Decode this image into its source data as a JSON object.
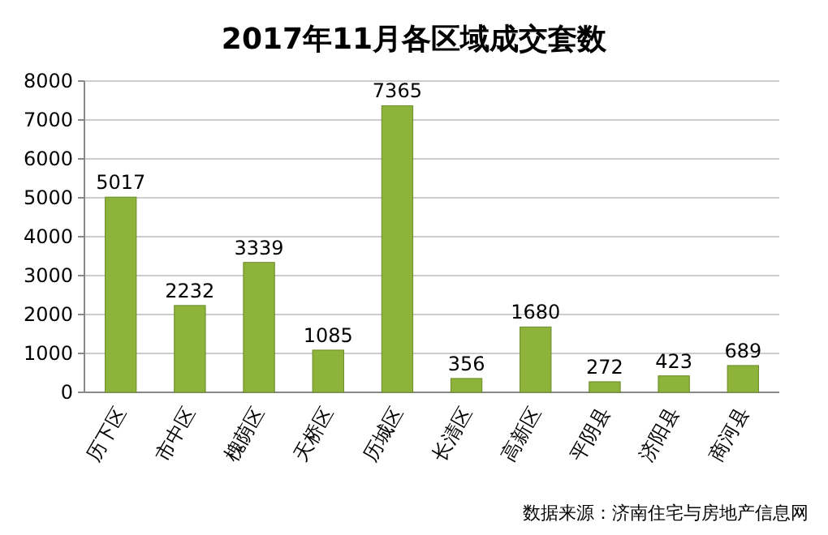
{
  "chart_data": {
    "type": "bar",
    "title": "2017年11月各区域成交套数",
    "categories": [
      "历下区",
      "市中区",
      "槐荫区",
      "天桥区",
      "历城区",
      "长清区",
      "高新区",
      "平阴县",
      "济阳县",
      "商河县"
    ],
    "values": [
      5017,
      2232,
      3339,
      1085,
      7365,
      356,
      1680,
      272,
      423,
      689
    ],
    "color": "#8db33a",
    "ylim": [
      0,
      8000
    ],
    "yticks": [
      0,
      1000,
      2000,
      3000,
      4000,
      5000,
      6000,
      7000,
      8000
    ],
    "grid": "y",
    "data_labels": true,
    "annotations": [
      "数据来源：济南住宅与房地产信息网"
    ]
  }
}
